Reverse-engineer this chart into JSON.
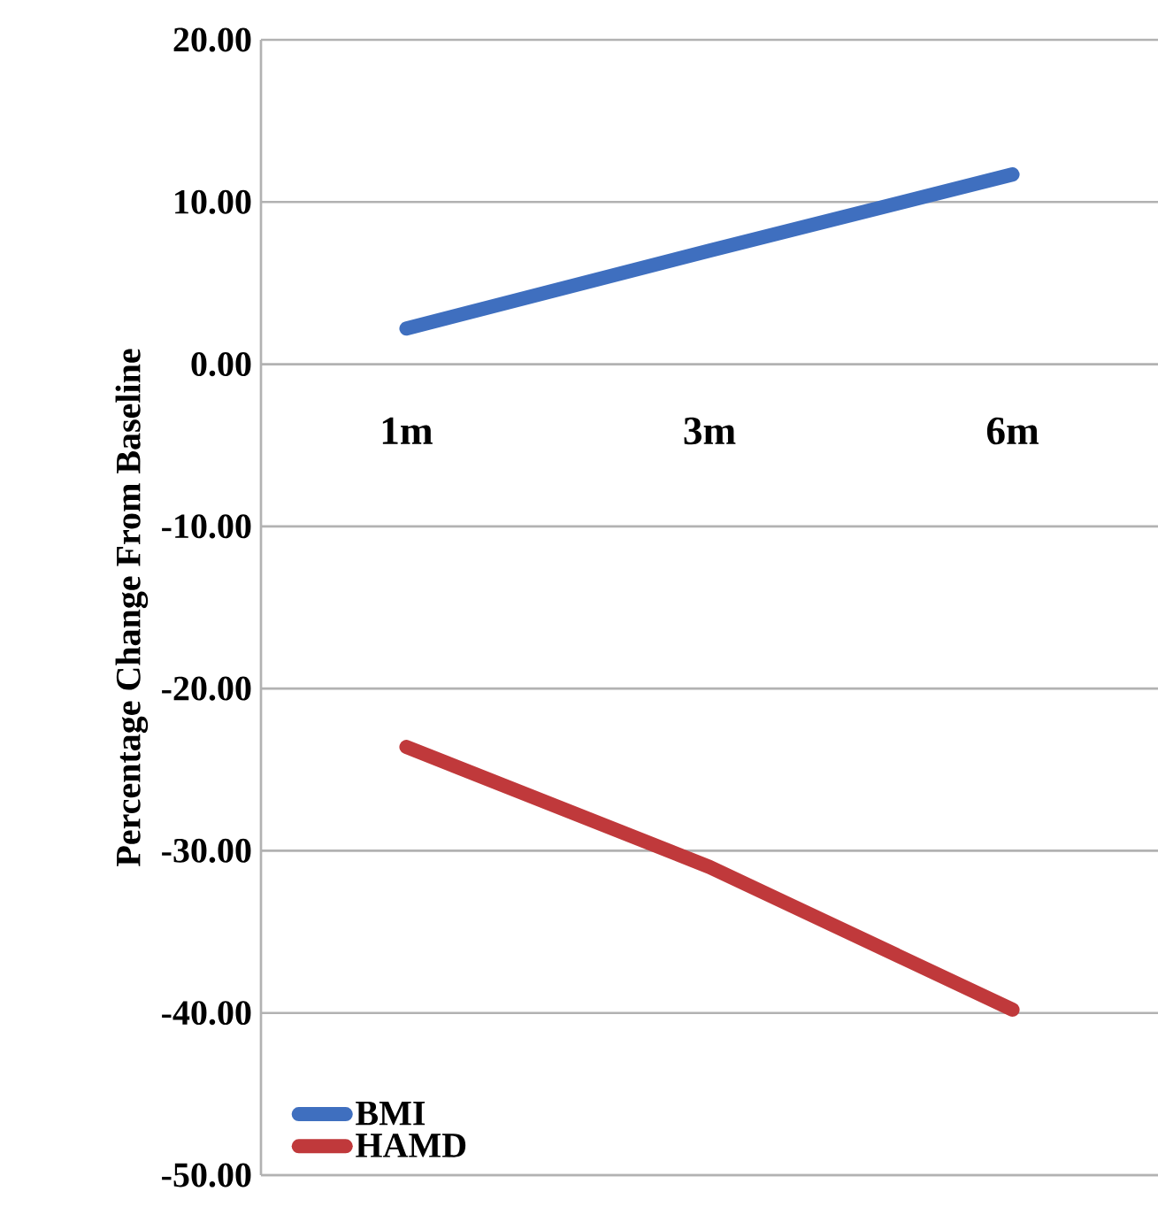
{
  "chart_data": {
    "type": "line",
    "ylabel": "Percentage Change From Baseline",
    "categories": [
      "1m",
      "3m",
      "6m"
    ],
    "series": [
      {
        "name": "BMI",
        "color": "#3f6fbf",
        "values": [
          2.2,
          7.0,
          11.7
        ]
      },
      {
        "name": "HAMD",
        "color": "#c0393b",
        "values": [
          -23.6,
          -31.0,
          -39.8
        ]
      }
    ],
    "ylim": [
      -50,
      20
    ],
    "yticks": [
      {
        "value": -50,
        "label": "-50.00"
      },
      {
        "value": -40,
        "label": "-40.00"
      },
      {
        "value": -30,
        "label": "-30.00"
      },
      {
        "value": -20,
        "label": "-20.00"
      },
      {
        "value": -10,
        "label": "-10.00"
      },
      {
        "value": 0,
        "label": "0.00"
      },
      {
        "value": 10,
        "label": "10.00"
      },
      {
        "value": 20,
        "label": "20.00"
      }
    ],
    "grid": "y",
    "legend": "bottom left",
    "marker": "none",
    "line_style": "solid"
  }
}
